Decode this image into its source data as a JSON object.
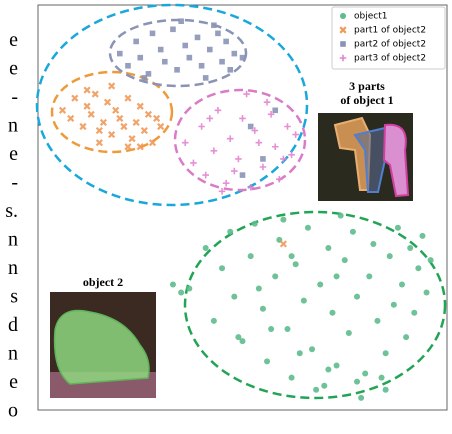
{
  "cropped_text": [
    "e",
    "e",
    "-",
    "n",
    "e",
    "-",
    "s.",
    "n",
    "n",
    "s",
    "d",
    "n",
    "e",
    "o"
  ],
  "chart_data": {
    "type": "scatter",
    "annotations": [
      "3 parts",
      "of object 1",
      "object 2"
    ],
    "xlim": [
      0,
      100
    ],
    "ylim": [
      0,
      100
    ],
    "legend": "upper right",
    "series": [
      {
        "name": "object1",
        "color": "#5dbb8c",
        "marker": "circle",
        "x": [
          33,
          35,
          37,
          41,
          43,
          45,
          47,
          48,
          50,
          52,
          53,
          55,
          56,
          58,
          59,
          61,
          62,
          63,
          65,
          66,
          67,
          69,
          70,
          71,
          72,
          73,
          75,
          76,
          77,
          78,
          80,
          81,
          82,
          83,
          85,
          86,
          87,
          88,
          89,
          90,
          91,
          92,
          93,
          94,
          95,
          96,
          54,
          60,
          68,
          74,
          79,
          84,
          57,
          64,
          71,
          78,
          85,
          49,
          62,
          73
        ],
        "y": [
          31,
          29,
          30,
          40,
          22,
          35,
          44,
          28,
          17,
          38,
          46,
          25,
          12,
          33,
          42,
          20,
          8,
          36,
          27,
          45,
          15,
          31,
          6,
          40,
          24,
          11,
          37,
          19,
          44,
          28,
          9,
          33,
          41,
          22,
          14,
          38,
          26,
          45,
          31,
          18,
          40,
          24,
          35,
          43,
          29,
          37,
          30,
          47,
          5,
          48,
          3,
          8,
          20,
          14,
          10,
          7,
          5,
          18,
          38,
          33
        ]
      },
      {
        "name": "part1 of object2",
        "color": "#ef9a5a",
        "marker": "x",
        "x": [
          6,
          8,
          9,
          11,
          12,
          13,
          14,
          15,
          16,
          17,
          18,
          19,
          20,
          21,
          22,
          23,
          24,
          25,
          26,
          27,
          28,
          29,
          30,
          12,
          18,
          22,
          15,
          25,
          60
        ],
        "y": [
          74,
          72,
          77,
          70,
          75,
          73,
          78,
          69,
          71,
          76,
          68,
          74,
          72,
          70,
          77,
          67,
          71,
          75,
          69,
          73,
          66,
          72,
          70,
          79,
          80,
          65,
          66,
          65,
          41
        ]
      },
      {
        "name": "part2 of object2",
        "color": "#8a93b5",
        "marker": "square",
        "x": [
          20,
          22,
          24,
          25,
          27,
          28,
          30,
          31,
          33,
          34,
          36,
          37,
          39,
          40,
          42,
          43,
          45,
          46,
          48,
          50,
          26,
          35,
          41,
          47,
          44,
          52,
          55,
          58,
          50
        ],
        "y": [
          88,
          85,
          91,
          87,
          83,
          93,
          89,
          86,
          94,
          84,
          90,
          87,
          92,
          85,
          89,
          95,
          86,
          91,
          88,
          87,
          82,
          96,
          82,
          84,
          93,
          70,
          62,
          74,
          58
        ]
      },
      {
        "name": "part3 of object2",
        "color": "#e384cf",
        "marker": "plus",
        "x": [
          36,
          38,
          40,
          41,
          43,
          44,
          46,
          47,
          49,
          50,
          52,
          53,
          55,
          56,
          58,
          59,
          61,
          62,
          63,
          45,
          51,
          57,
          48,
          54,
          60,
          42
        ],
        "y": [
          66,
          61,
          70,
          58,
          64,
          74,
          56,
          67,
          62,
          72,
          55,
          69,
          60,
          76,
          65,
          57,
          70,
          63,
          68,
          54,
          78,
          73,
          59,
          66,
          62,
          72
        ]
      }
    ]
  }
}
